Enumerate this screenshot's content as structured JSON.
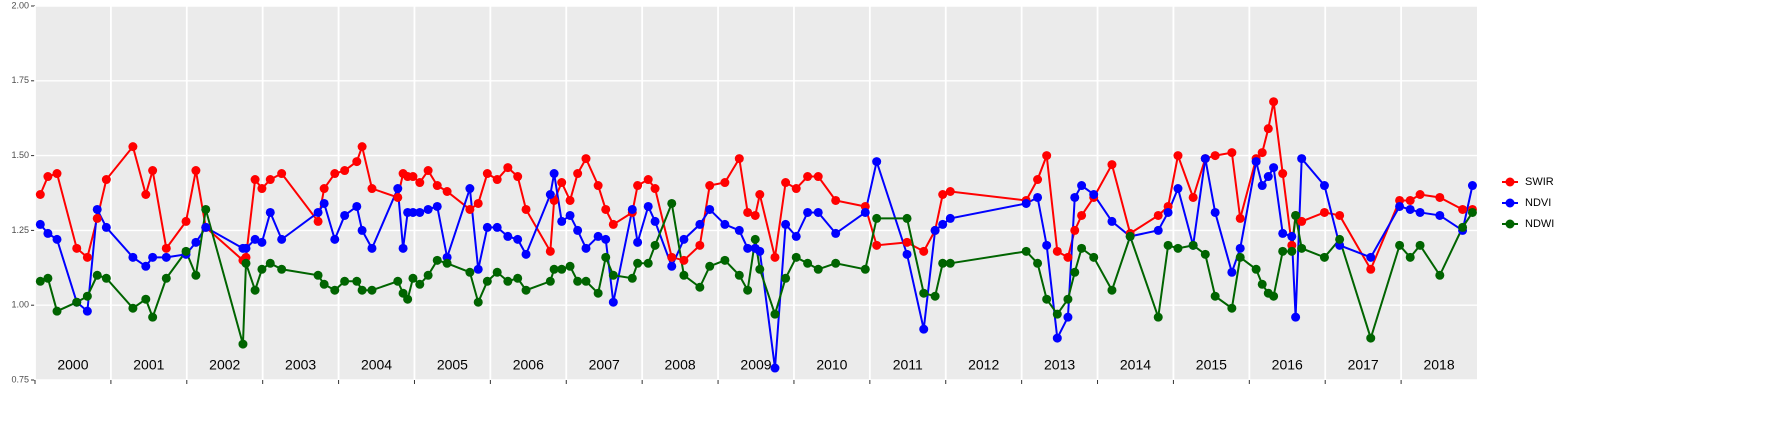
{
  "chart_data": {
    "type": "line",
    "legend": "right",
    "grid": true,
    "xlim": [
      2000,
      2019
    ],
    "ylim": [
      0.75,
      2.0
    ],
    "xticks": [
      2000,
      2001,
      2002,
      2003,
      2004,
      2005,
      2006,
      2007,
      2008,
      2009,
      2010,
      2011,
      2012,
      2013,
      2014,
      2015,
      2016,
      2017,
      2018
    ],
    "yticks": [
      {
        "value": 0.75,
        "label": "0.75"
      },
      {
        "value": 1.0,
        "label": "1.00"
      },
      {
        "value": 1.25,
        "label": "1.25"
      },
      {
        "value": 1.5,
        "label": "1.50"
      },
      {
        "value": 1.75,
        "label": "1.75"
      },
      {
        "value": 2.0,
        "label": "2.00"
      }
    ],
    "x": [
      2000.07,
      2000.17,
      2000.29,
      2000.55,
      2000.69,
      2000.82,
      2000.94,
      2001.29,
      2001.46,
      2001.55,
      2001.73,
      2001.99,
      2002.12,
      2002.25,
      2002.74,
      2002.78,
      2002.9,
      2002.99,
      2003.1,
      2003.25,
      2003.73,
      2003.81,
      2003.95,
      2004.08,
      2004.24,
      2004.31,
      2004.44,
      2004.78,
      2004.85,
      2004.91,
      2004.98,
      2005.07,
      2005.18,
      2005.3,
      2005.43,
      2005.73,
      2005.84,
      2005.96,
      2006.09,
      2006.23,
      2006.36,
      2006.47,
      2006.79,
      2006.84,
      2006.94,
      2007.05,
      2007.15,
      2007.26,
      2007.42,
      2007.52,
      2007.62,
      2007.87,
      2007.94,
      2008.08,
      2008.17,
      2008.39,
      2008.55,
      2008.76,
      2008.89,
      2009.09,
      2009.28,
      2009.39,
      2009.49,
      2009.55,
      2009.75,
      2009.89,
      2010.03,
      2010.18,
      2010.32,
      2010.55,
      2010.94,
      2011.09,
      2011.49,
      2011.71,
      2011.86,
      2011.96,
      2012.06,
      2013.06,
      2013.21,
      2013.33,
      2013.47,
      2013.61,
      2013.7,
      2013.79,
      2013.95,
      2014.19,
      2014.43,
      2014.8,
      2014.93,
      2015.06,
      2015.26,
      2015.42,
      2015.55,
      2015.77,
      2015.88,
      2016.09,
      2016.17,
      2016.25,
      2016.32,
      2016.44,
      2016.56,
      2016.61,
      2016.69,
      2016.99,
      2017.19,
      2017.6,
      2017.98,
      2018.12,
      2018.25,
      2018.51,
      2018.81,
      2018.94
    ],
    "series": [
      {
        "name": "SWIR",
        "color": "#ff0000",
        "values": [
          1.37,
          1.43,
          1.44,
          1.19,
          1.16,
          1.29,
          1.42,
          1.53,
          1.37,
          1.45,
          1.19,
          1.28,
          1.45,
          1.26,
          1.15,
          1.16,
          1.42,
          1.39,
          1.42,
          1.44,
          1.28,
          1.39,
          1.44,
          1.45,
          1.48,
          1.53,
          1.39,
          1.36,
          1.44,
          1.43,
          1.43,
          1.41,
          1.45,
          1.4,
          1.38,
          1.32,
          1.34,
          1.44,
          1.42,
          1.46,
          1.43,
          1.32,
          1.18,
          1.35,
          1.41,
          1.35,
          1.44,
          1.49,
          1.4,
          1.32,
          1.27,
          1.31,
          1.4,
          1.42,
          1.39,
          1.16,
          1.15,
          1.2,
          1.4,
          1.41,
          1.49,
          1.31,
          1.3,
          1.37,
          1.16,
          1.41,
          1.39,
          1.43,
          1.43,
          1.35,
          1.33,
          1.2,
          1.21,
          1.18,
          1.25,
          1.37,
          1.38,
          1.35,
          1.42,
          1.5,
          1.18,
          1.16,
          1.25,
          1.3,
          1.36,
          1.47,
          1.24,
          1.3,
          1.33,
          1.5,
          1.36,
          1.49,
          1.5,
          1.51,
          1.29,
          1.49,
          1.51,
          1.59,
          1.68,
          1.44,
          1.2,
          1.3,
          1.28,
          1.31,
          1.3,
          1.12,
          1.35,
          1.35,
          1.37,
          1.36,
          1.32,
          1.32
        ]
      },
      {
        "name": "NDVI",
        "color": "#0000ff",
        "values": [
          1.27,
          1.24,
          1.22,
          1.01,
          0.98,
          1.32,
          1.26,
          1.16,
          1.13,
          1.16,
          1.16,
          1.17,
          1.21,
          1.26,
          1.19,
          1.19,
          1.22,
          1.21,
          1.31,
          1.22,
          1.31,
          1.34,
          1.22,
          1.3,
          1.33,
          1.25,
          1.19,
          1.39,
          1.19,
          1.31,
          1.31,
          1.31,
          1.32,
          1.33,
          1.16,
          1.39,
          1.12,
          1.26,
          1.26,
          1.23,
          1.22,
          1.17,
          1.37,
          1.44,
          1.28,
          1.3,
          1.25,
          1.19,
          1.23,
          1.22,
          1.01,
          1.32,
          1.21,
          1.33,
          1.28,
          1.13,
          1.22,
          1.27,
          1.32,
          1.27,
          1.25,
          1.19,
          1.19,
          1.18,
          0.79,
          1.27,
          1.23,
          1.31,
          1.31,
          1.24,
          1.31,
          1.48,
          1.17,
          0.92,
          1.25,
          1.27,
          1.29,
          1.34,
          1.36,
          1.2,
          0.89,
          0.96,
          1.36,
          1.4,
          1.37,
          1.28,
          1.23,
          1.25,
          1.31,
          1.39,
          1.2,
          1.49,
          1.31,
          1.11,
          1.19,
          1.48,
          1.4,
          1.43,
          1.46,
          1.24,
          1.23,
          0.96,
          1.49,
          1.4,
          1.2,
          1.16,
          1.33,
          1.32,
          1.31,
          1.3,
          1.25,
          1.4
        ]
      },
      {
        "name": "NDWI",
        "color": "#006400",
        "values": [
          1.08,
          1.09,
          0.98,
          1.01,
          1.03,
          1.1,
          1.09,
          0.99,
          1.02,
          0.96,
          1.09,
          1.18,
          1.1,
          1.32,
          0.87,
          1.14,
          1.05,
          1.12,
          1.14,
          1.12,
          1.1,
          1.07,
          1.05,
          1.08,
          1.08,
          1.05,
          1.05,
          1.08,
          1.04,
          1.02,
          1.09,
          1.07,
          1.1,
          1.15,
          1.14,
          1.11,
          1.01,
          1.08,
          1.11,
          1.08,
          1.09,
          1.05,
          1.08,
          1.12,
          1.12,
          1.13,
          1.08,
          1.08,
          1.04,
          1.16,
          1.1,
          1.09,
          1.14,
          1.14,
          1.2,
          1.34,
          1.1,
          1.06,
          1.13,
          1.15,
          1.1,
          1.05,
          1.22,
          1.12,
          0.97,
          1.09,
          1.16,
          1.14,
          1.12,
          1.14,
          1.12,
          1.29,
          1.29,
          1.04,
          1.03,
          1.14,
          1.14,
          1.18,
          1.14,
          1.02,
          0.97,
          1.02,
          1.11,
          1.19,
          1.16,
          1.05,
          1.23,
          0.96,
          1.2,
          1.19,
          1.2,
          1.17,
          1.03,
          0.99,
          1.16,
          1.12,
          1.07,
          1.04,
          1.03,
          1.18,
          1.18,
          1.3,
          1.19,
          1.16,
          1.22,
          0.89,
          1.2,
          1.16,
          1.2,
          1.1,
          1.26,
          1.31
        ]
      }
    ]
  }
}
